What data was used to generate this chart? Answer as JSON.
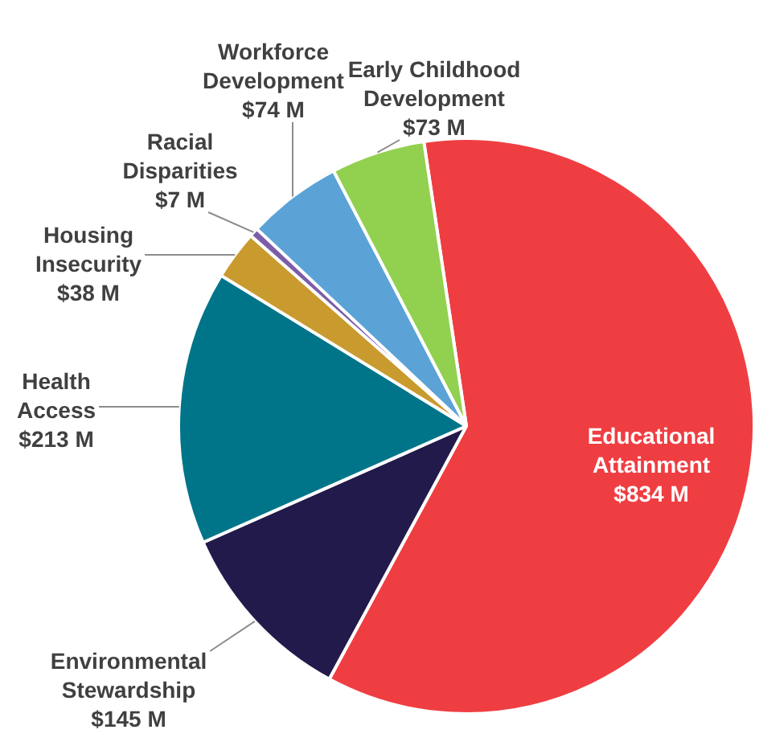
{
  "chart_data": {
    "type": "pie",
    "categories": [
      "Educational Attainment",
      "Environmental Stewardship",
      "Health Access",
      "Housing Insecurity",
      "Racial Disparities",
      "Workforce Development",
      "Early Childhood Development"
    ],
    "values": [
      834,
      145,
      213,
      38,
      7,
      74,
      73
    ],
    "colors": [
      "#ef3e42",
      "#221a4a",
      "#007589",
      "#c99a2e",
      "#7b5ea7",
      "#5ba3d6",
      "#92d050"
    ],
    "value_labels": [
      "$834 M",
      "$145 M",
      "$213 M",
      "$38 M",
      "$7 M",
      "$74 M",
      "$73 M"
    ],
    "legend": false
  }
}
